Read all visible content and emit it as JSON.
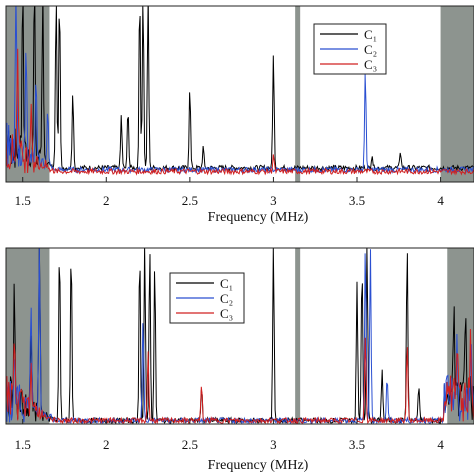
{
  "chart_data": [
    {
      "type": "line",
      "xlabel": "Frequency (MHz)",
      "ylabel": "",
      "xlim": [
        1.4,
        4.2
      ],
      "x_ticks": [
        "1.5",
        "2",
        "2.5",
        "3",
        "3.5",
        "4"
      ],
      "y_ticks": [],
      "grid": false,
      "legend_position": "top-right",
      "shaded_bands_mhz": [
        [
          1.4,
          1.66
        ],
        [
          3.13,
          3.16
        ],
        [
          4.0,
          4.2
        ]
      ],
      "series": [
        {
          "name": "C₁",
          "color": "#000000",
          "peaks": [
            [
              1.5,
              0.95
            ],
            [
              1.57,
              1.0
            ],
            [
              1.62,
              1.0
            ],
            [
              1.7,
              1.0
            ],
            [
              1.72,
              1.0
            ],
            [
              1.8,
              0.45
            ],
            [
              2.09,
              0.3
            ],
            [
              2.13,
              0.35
            ],
            [
              2.2,
              1.0
            ],
            [
              2.22,
              1.0
            ],
            [
              2.25,
              1.0
            ],
            [
              2.5,
              0.47
            ],
            [
              2.58,
              0.12
            ],
            [
              3.0,
              0.66
            ],
            [
              3.59,
              0.08
            ],
            [
              3.76,
              0.1
            ]
          ],
          "baseline": 0.08
        },
        {
          "name": "C₂",
          "color": "#2a4fd1",
          "peaks": [
            [
              1.46,
              0.9
            ],
            [
              1.52,
              0.7
            ],
            [
              1.58,
              0.5
            ],
            [
              1.65,
              0.35
            ],
            [
              3.55,
              0.58
            ]
          ],
          "baseline": 0.07
        },
        {
          "name": "C₃",
          "color": "#d02020",
          "peaks": [
            [
              1.47,
              0.6
            ],
            [
              1.55,
              0.35
            ],
            [
              3.0,
              0.1
            ]
          ],
          "baseline": 0.06
        }
      ]
    },
    {
      "type": "line",
      "xlabel": "Frequency (MHz)",
      "ylabel": "",
      "xlim": [
        1.4,
        4.2
      ],
      "x_ticks": [
        "1.5",
        "2",
        "2.5",
        "3",
        "3.5",
        "4"
      ],
      "y_ticks": [],
      "grid": false,
      "legend_position": "upper-left-center",
      "shaded_bands_mhz": [
        [
          1.4,
          1.66
        ],
        [
          3.13,
          3.16
        ],
        [
          4.04,
          4.2
        ]
      ],
      "series": [
        {
          "name": "C₁",
          "color": "#000000",
          "peaks": [
            [
              1.45,
              0.7
            ],
            [
              1.55,
              0.5
            ],
            [
              1.6,
              0.95
            ],
            [
              1.72,
              1.0
            ],
            [
              1.79,
              1.0
            ],
            [
              2.2,
              1.0
            ],
            [
              2.23,
              1.0
            ],
            [
              2.26,
              1.0
            ],
            [
              2.29,
              0.9
            ],
            [
              2.57,
              0.2
            ],
            [
              3.0,
              1.0
            ],
            [
              3.5,
              0.8
            ],
            [
              3.53,
              0.9
            ],
            [
              3.56,
              1.0
            ],
            [
              3.65,
              0.3
            ],
            [
              3.8,
              1.0
            ],
            [
              3.87,
              0.2
            ],
            [
              4.08,
              0.5
            ],
            [
              4.15,
              0.6
            ]
          ],
          "baseline": 0.02
        },
        {
          "name": "C₂",
          "color": "#2a4fd1",
          "peaks": [
            [
              1.45,
              0.3
            ],
            [
              1.55,
              0.55
            ],
            [
              1.6,
              1.0
            ],
            [
              2.22,
              0.6
            ],
            [
              3.55,
              1.0
            ],
            [
              3.58,
              1.0
            ],
            [
              3.68,
              0.25
            ],
            [
              4.1,
              0.3
            ],
            [
              4.18,
              0.35
            ]
          ],
          "baseline": 0.02
        },
        {
          "name": "C₃",
          "color": "#d02020",
          "peaks": [
            [
              1.45,
              0.3
            ],
            [
              1.55,
              0.3
            ],
            [
              2.25,
              0.4
            ],
            [
              2.57,
              0.2
            ],
            [
              3.55,
              0.5
            ],
            [
              3.8,
              0.45
            ],
            [
              4.1,
              0.35
            ],
            [
              4.18,
              0.3
            ]
          ],
          "baseline": 0.02
        }
      ]
    }
  ]
}
